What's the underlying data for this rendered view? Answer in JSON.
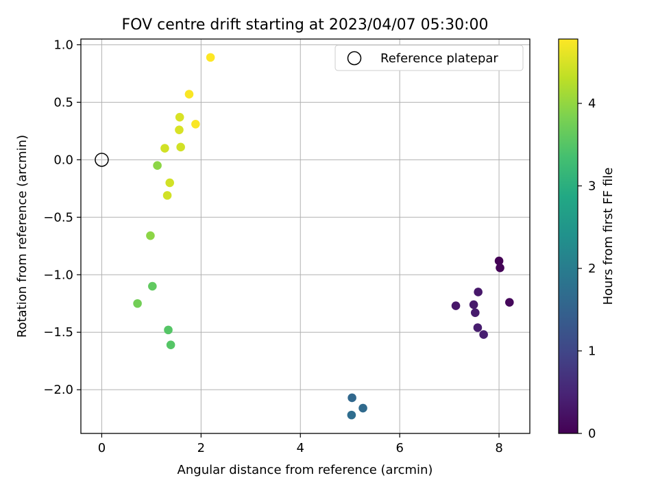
{
  "chart_data": {
    "type": "scatter",
    "title": "FOV centre drift starting at 2023/04/07 05:30:00",
    "xlabel": "Angular distance from reference (arcmin)",
    "ylabel": "Rotation from reference (arcmin)",
    "xlim": [
      -0.42,
      8.62
    ],
    "ylim": [
      -2.38,
      1.05
    ],
    "xticks": [
      0,
      2,
      4,
      6,
      8
    ],
    "xtick_labels": [
      "0",
      "2",
      "4",
      "6",
      "8"
    ],
    "yticks": [
      1.0,
      0.5,
      0.0,
      -0.5,
      -1.0,
      -1.5,
      -2.0
    ],
    "ytick_labels": [
      "1.0",
      "0.5",
      "0.0",
      "−0.5",
      "−1.0",
      "−1.5",
      "−2.0"
    ],
    "grid": true,
    "legend": {
      "label": "Reference platepar",
      "position": "top-right",
      "marker": "open-circle"
    },
    "reference_point": {
      "x": 0,
      "y": 0
    },
    "colorbar": {
      "label": "Hours from first FF file",
      "colormap": "viridis",
      "range": [
        0,
        4.78
      ],
      "ticks": [
        0,
        1,
        2,
        3,
        4
      ],
      "tick_labels": [
        "0",
        "1",
        "2",
        "3",
        "4"
      ]
    },
    "points": [
      {
        "x": 8.0,
        "y": -0.88,
        "hours": 0.02
      },
      {
        "x": 8.02,
        "y": -0.94,
        "hours": 0.05
      },
      {
        "x": 8.21,
        "y": -1.24,
        "hours": 0.1
      },
      {
        "x": 7.13,
        "y": -1.27,
        "hours": 0.3
      },
      {
        "x": 7.58,
        "y": -1.15,
        "hours": 0.32
      },
      {
        "x": 7.49,
        "y": -1.26,
        "hours": 0.34
      },
      {
        "x": 7.52,
        "y": -1.33,
        "hours": 0.36
      },
      {
        "x": 7.57,
        "y": -1.46,
        "hours": 0.38
      },
      {
        "x": 7.69,
        "y": -1.52,
        "hours": 0.4
      },
      {
        "x": 5.04,
        "y": -2.07,
        "hours": 1.6
      },
      {
        "x": 5.26,
        "y": -2.16,
        "hours": 1.65
      },
      {
        "x": 5.03,
        "y": -2.22,
        "hours": 1.7
      },
      {
        "x": 1.34,
        "y": -1.48,
        "hours": 3.5
      },
      {
        "x": 1.39,
        "y": -1.61,
        "hours": 3.5
      },
      {
        "x": 1.02,
        "y": -1.1,
        "hours": 3.6
      },
      {
        "x": 0.72,
        "y": -1.25,
        "hours": 3.75
      },
      {
        "x": 0.98,
        "y": -0.66,
        "hours": 3.95
      },
      {
        "x": 1.12,
        "y": -0.05,
        "hours": 3.95
      },
      {
        "x": 1.37,
        "y": -0.2,
        "hours": 4.45
      },
      {
        "x": 1.32,
        "y": -0.31,
        "hours": 4.45
      },
      {
        "x": 1.27,
        "y": 0.1,
        "hours": 4.45
      },
      {
        "x": 1.59,
        "y": 0.11,
        "hours": 4.45
      },
      {
        "x": 1.56,
        "y": 0.26,
        "hours": 4.5
      },
      {
        "x": 1.57,
        "y": 0.37,
        "hours": 4.5
      },
      {
        "x": 1.89,
        "y": 0.31,
        "hours": 4.75
      },
      {
        "x": 1.76,
        "y": 0.57,
        "hours": 4.75
      },
      {
        "x": 2.19,
        "y": 0.89,
        "hours": 4.78
      }
    ]
  }
}
